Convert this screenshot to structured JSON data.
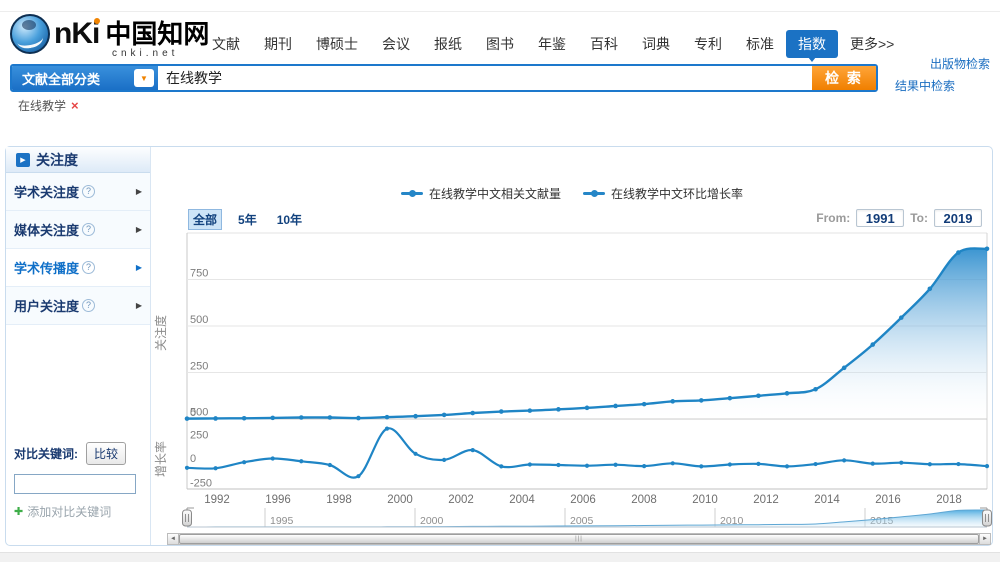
{
  "header": {
    "logo": {
      "brand": "nKi",
      "cn": "中国知网",
      "en": "cnki.net"
    },
    "nav_items": [
      {
        "label": "文献",
        "active": false
      },
      {
        "label": "期刊",
        "active": false
      },
      {
        "label": "博硕士",
        "active": false
      },
      {
        "label": "会议",
        "active": false
      },
      {
        "label": "报纸",
        "active": false
      },
      {
        "label": "图书",
        "active": false
      },
      {
        "label": "年鉴",
        "active": false
      },
      {
        "label": "百科",
        "active": false
      },
      {
        "label": "词典",
        "active": false
      },
      {
        "label": "专利",
        "active": false
      },
      {
        "label": "标准",
        "active": false
      },
      {
        "label": "指数",
        "active": true
      },
      {
        "label": "更多>>",
        "active": false
      }
    ],
    "publication_search": "出版物检索",
    "search_in_results": "结果中检索"
  },
  "search": {
    "category_label": "文献全部分类",
    "query": "在线教学",
    "search_button": "检 索",
    "tag": {
      "text": "在线教学",
      "close": "×"
    }
  },
  "sidebar": {
    "header": "关注度",
    "items": [
      {
        "label": "学术关注度",
        "selected": false
      },
      {
        "label": "媒体关注度",
        "selected": false
      },
      {
        "label": "学术传播度",
        "selected": true
      },
      {
        "label": "用户关注度",
        "selected": false
      }
    ],
    "compare": {
      "label": "对比关键词:",
      "button": "比较",
      "input_value": "",
      "add_link": "添加对比关键词"
    }
  },
  "chart": {
    "range_tabs": [
      {
        "label": "全部",
        "selected": true
      },
      {
        "label": "5年",
        "selected": false
      },
      {
        "label": "10年",
        "selected": false
      }
    ],
    "from_label": "From:",
    "from_value": "1991",
    "to_label": "To:",
    "to_value": "2019"
  },
  "chart_data": {
    "type": "line",
    "x": [
      1991,
      1992,
      1993,
      1994,
      1995,
      1996,
      1997,
      1998,
      1999,
      2000,
      2001,
      2002,
      2003,
      2004,
      2005,
      2006,
      2007,
      2008,
      2009,
      2010,
      2011,
      2012,
      2013,
      2014,
      2015,
      2016,
      2017,
      2018,
      2019
    ],
    "series": [
      {
        "name": "在线教学中文相关文献量",
        "axis": "left",
        "values": [
          2,
          3,
          4,
          6,
          8,
          8,
          5,
          10,
          15,
          22,
          32,
          40,
          45,
          52,
          60,
          70,
          80,
          95,
          100,
          112,
          125,
          138,
          160,
          275,
          400,
          545,
          700,
          895,
          915
        ]
      },
      {
        "name": "在线教学中文环比增长率",
        "axis": "right",
        "values": [
          -30,
          -35,
          30,
          70,
          40,
          0,
          -120,
          390,
          120,
          55,
          160,
          -15,
          5,
          0,
          -8,
          3,
          -12,
          18,
          -15,
          5,
          12,
          -15,
          10,
          50,
          15,
          25,
          8,
          10,
          -12
        ]
      }
    ],
    "left_axis": {
      "title": "关注度",
      "ticks": [
        0,
        250,
        500,
        750
      ],
      "range": [
        0,
        1000
      ]
    },
    "right_axis": {
      "title": "增长率",
      "ticks": [
        -250,
        0,
        250,
        500
      ],
      "range": [
        -250,
        500
      ]
    },
    "x_tick_labels": [
      "1992",
      "1996",
      "1998",
      "2000",
      "2002",
      "2004",
      "2006",
      "2008",
      "2010",
      "2012",
      "2014",
      "2016",
      "2018"
    ],
    "timeline_labels": [
      "1995",
      "2000",
      "2005",
      "2010",
      "2015"
    ],
    "legend_position": "top",
    "grid": "horizontal"
  },
  "icons": {
    "dropdown": "▼",
    "help": "?",
    "arrow": "▶",
    "play": "▶",
    "plus": "✚",
    "scroll_left": "◄",
    "scroll_right": "►",
    "grip": "|||"
  },
  "colors": {
    "brand_blue": "#1b72c4",
    "button_orange": "#f58a1d",
    "series_blue": "#1f85c5",
    "link_blue": "#1a6dc0",
    "navy_text": "#1a3a70",
    "selected_blue": "#1070c8",
    "tag_close_red": "#e64545",
    "add_plus_green": "#3fae49"
  }
}
